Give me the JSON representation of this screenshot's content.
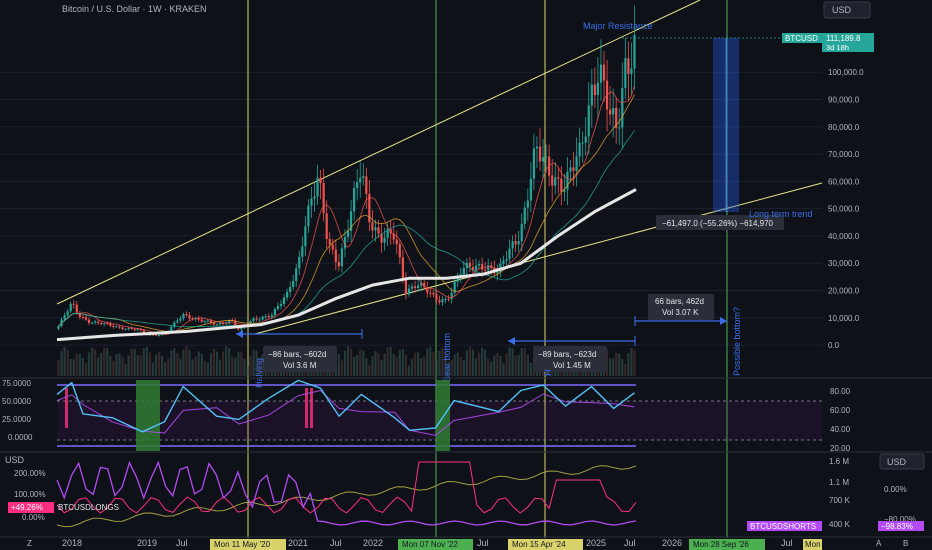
{
  "header": {
    "title": "Bitcoin / U.S. Dollar · 1W · KRAKEN",
    "currency_top": "USD",
    "currency_bottom": "USD"
  },
  "price_tag": {
    "symbol": "BTCUSD",
    "value": "111,189.8",
    "countdown": "3d 18h"
  },
  "colors": {
    "bg": "#0e1117",
    "up": "#26a69a",
    "down": "#ef5350",
    "trendline": "#e8e58a",
    "vline_yellow": "#d9d26b",
    "vline_green": "#4caf50",
    "blue": "#3a6ee8",
    "rsi": "#4fc3f7",
    "purple": "#b24bf3",
    "pink": "#ff2e82",
    "white": "#e6e6e6"
  },
  "chart_data": [
    {
      "type": "candlestick",
      "title": "Bitcoin / U.S. Dollar · 1W · KRAKEN",
      "y_ticks": [
        0,
        10000,
        20000,
        30000,
        40000,
        50000,
        60000,
        70000,
        80000,
        90000,
        100000
      ],
      "y_tick_labels": [
        "0.0",
        "10,000.0",
        "20,000.0",
        "30,000.0",
        "40,000.0",
        "50,000.0",
        "60,000.0",
        "70,000.0",
        "80,000.0",
        "90,000.0",
        "100,000.0"
      ],
      "ylim": [
        -4000,
        114000
      ],
      "close_path": [
        {
          "x": 2017.75,
          "y": 6000
        },
        {
          "x": 2017.95,
          "y": 15000
        },
        {
          "x": 2018.05,
          "y": 11000
        },
        {
          "x": 2018.2,
          "y": 8500
        },
        {
          "x": 2018.4,
          "y": 7500
        },
        {
          "x": 2018.6,
          "y": 6500
        },
        {
          "x": 2018.85,
          "y": 5500
        },
        {
          "x": 2018.95,
          "y": 3700
        },
        {
          "x": 2019.2,
          "y": 4000
        },
        {
          "x": 2019.45,
          "y": 11000
        },
        {
          "x": 2019.6,
          "y": 10000
        },
        {
          "x": 2019.9,
          "y": 7200
        },
        {
          "x": 2020.1,
          "y": 9500
        },
        {
          "x": 2020.2,
          "y": 5500
        },
        {
          "x": 2020.4,
          "y": 9200
        },
        {
          "x": 2020.65,
          "y": 11500
        },
        {
          "x": 2020.85,
          "y": 18000
        },
        {
          "x": 2021.0,
          "y": 30000
        },
        {
          "x": 2021.1,
          "y": 47000
        },
        {
          "x": 2021.27,
          "y": 60000
        },
        {
          "x": 2021.4,
          "y": 37000
        },
        {
          "x": 2021.55,
          "y": 31000
        },
        {
          "x": 2021.7,
          "y": 47000
        },
        {
          "x": 2021.85,
          "y": 64000
        },
        {
          "x": 2021.95,
          "y": 48000
        },
        {
          "x": 2022.1,
          "y": 40000
        },
        {
          "x": 2022.3,
          "y": 39000
        },
        {
          "x": 2022.45,
          "y": 20000
        },
        {
          "x": 2022.6,
          "y": 23000
        },
        {
          "x": 2022.85,
          "y": 16500
        },
        {
          "x": 2023.0,
          "y": 17000
        },
        {
          "x": 2023.2,
          "y": 27000
        },
        {
          "x": 2023.5,
          "y": 30000
        },
        {
          "x": 2023.7,
          "y": 26000
        },
        {
          "x": 2023.85,
          "y": 35000
        },
        {
          "x": 2024.0,
          "y": 43000
        },
        {
          "x": 2024.2,
          "y": 70000
        },
        {
          "x": 2024.4,
          "y": 64000
        },
        {
          "x": 2024.6,
          "y": 58000
        },
        {
          "x": 2024.8,
          "y": 70000
        },
        {
          "x": 2024.95,
          "y": 95000
        },
        {
          "x": 2025.05,
          "y": 102000
        },
        {
          "x": 2025.2,
          "y": 82000
        },
        {
          "x": 2025.3,
          "y": 78000
        },
        {
          "x": 2025.4,
          "y": 104000
        },
        {
          "x": 2025.53,
          "y": 111000
        }
      ],
      "ma_200w": [
        {
          "x": 2017.75,
          "y": 2000
        },
        {
          "x": 2018.5,
          "y": 3500
        },
        {
          "x": 2019.5,
          "y": 5000
        },
        {
          "x": 2020.5,
          "y": 7500
        },
        {
          "x": 2021.0,
          "y": 11000
        },
        {
          "x": 2021.5,
          "y": 17000
        },
        {
          "x": 2022.0,
          "y": 22000
        },
        {
          "x": 2022.5,
          "y": 24500
        },
        {
          "x": 2023.0,
          "y": 24500
        },
        {
          "x": 2023.5,
          "y": 26000
        },
        {
          "x": 2024.0,
          "y": 30000
        },
        {
          "x": 2024.5,
          "y": 40000
        },
        {
          "x": 2025.0,
          "y": 49000
        },
        {
          "x": 2025.55,
          "y": 57000
        }
      ],
      "annotations": {
        "major_resistance": "Major Resistance",
        "long_term_trend": "Long term trend",
        "measure_drop": "−61,497.0 (−55.26%) −614,970",
        "halving": "Halving",
        "bear_bottom": "Bear bottom",
        "possible_bottom": "Possible bottom?",
        "halving2": "H",
        "range1_l1": "−86 bars, −602d",
        "range1_l2": "Vol 3.6 M",
        "range2_l1": "−89 bars, −623d",
        "range2_l2": "Vol 1.45 M",
        "range3_l1": "66 bars, 462d",
        "range3_l2": "Vol 3.07 K"
      }
    },
    {
      "type": "line",
      "name": "RSI panel",
      "y_ticks_left": [
        "75.0000",
        "50.0000",
        "25.0000",
        "0.0000"
      ],
      "y_ticks_right": [
        "80.00",
        "60.00",
        "40.00",
        "20.00"
      ],
      "rsi": [
        {
          "x": 2017.75,
          "y": 70
        },
        {
          "x": 2017.95,
          "y": 85
        },
        {
          "x": 2018.1,
          "y": 45
        },
        {
          "x": 2018.5,
          "y": 40
        },
        {
          "x": 2018.9,
          "y": 22
        },
        {
          "x": 2019.2,
          "y": 35
        },
        {
          "x": 2019.45,
          "y": 80
        },
        {
          "x": 2019.9,
          "y": 42
        },
        {
          "x": 2020.2,
          "y": 38
        },
        {
          "x": 2020.6,
          "y": 65
        },
        {
          "x": 2021.0,
          "y": 88
        },
        {
          "x": 2021.3,
          "y": 78
        },
        {
          "x": 2021.55,
          "y": 42
        },
        {
          "x": 2021.85,
          "y": 70
        },
        {
          "x": 2022.3,
          "y": 40
        },
        {
          "x": 2022.5,
          "y": 24
        },
        {
          "x": 2022.85,
          "y": 27
        },
        {
          "x": 2023.1,
          "y": 62
        },
        {
          "x": 2023.7,
          "y": 48
        },
        {
          "x": 2024.0,
          "y": 75
        },
        {
          "x": 2024.3,
          "y": 82
        },
        {
          "x": 2024.6,
          "y": 55
        },
        {
          "x": 2024.95,
          "y": 80
        },
        {
          "x": 2025.25,
          "y": 52
        },
        {
          "x": 2025.53,
          "y": 72
        }
      ]
    },
    {
      "type": "line",
      "name": "Longs / Shorts panel",
      "y_ticks_left": [
        "200.00%",
        "100.00%",
        "0.00%"
      ],
      "y_ticks_right": [
        "1.6 M",
        "1.1 M",
        "700 K",
        "400 K"
      ],
      "y_ticks_far_right": [
        "0.00%",
        "−80.00%"
      ],
      "badges": {
        "longs_value": "+49.26%",
        "longs_name": "BTCUSDLONGS",
        "shorts_name": "BTCUSDSHORTS",
        "shorts_value": "−98.83%"
      }
    }
  ],
  "x_axis": {
    "labels": [
      "2018",
      "2019",
      "Jul",
      "2021",
      "Jul",
      "2022",
      "Jul",
      "2025",
      "Jul",
      "2026",
      "Jul"
    ],
    "highlights": {
      "may20": "Mon 11 May '20",
      "nov22": "Mon 07 Nov '22",
      "apr24": "Mon 15 Apr '24",
      "sep26": "Mon 28 Sep '26",
      "mon": "Mon"
    },
    "buttons": {
      "z": "Z",
      "a": "A",
      "b": "B"
    }
  }
}
